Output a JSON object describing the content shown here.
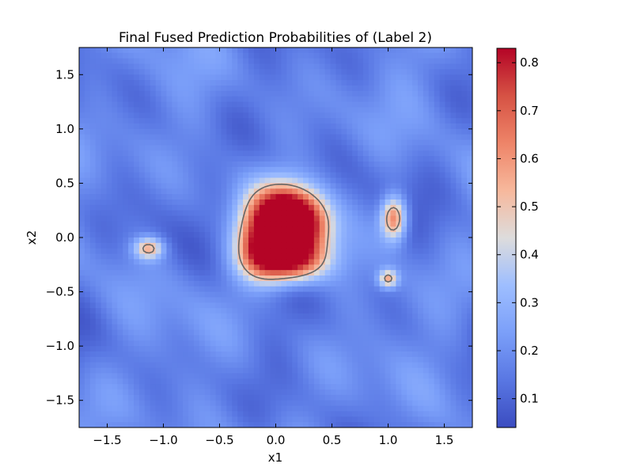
{
  "chart_data": {
    "type": "heatmap",
    "title": "Final Fused Prediction Probabilities of (Label 2)",
    "xlabel": "x1",
    "ylabel": "x2",
    "xlim": [
      -1.75,
      1.75
    ],
    "ylim": [
      -1.75,
      1.75
    ],
    "x_ticks": [
      -1.5,
      -1.0,
      -0.5,
      0.0,
      0.5,
      1.0,
      1.5
    ],
    "x_tick_labels": [
      "−1.5",
      "−1.0",
      "−0.5",
      "0.0",
      "0.5",
      "1.0",
      "1.5"
    ],
    "y_ticks": [
      1.5,
      1.0,
      0.5,
      0.0,
      -0.5,
      -1.0,
      -1.5
    ],
    "y_tick_labels": [
      "1.5",
      "1.0",
      "0.5",
      "0.0",
      "−0.5",
      "−1.0",
      "−1.5"
    ],
    "colormap": "coolwarm",
    "colorbar": {
      "range": [
        0.04,
        0.83
      ],
      "ticks": [
        0.1,
        0.2,
        0.3,
        0.4,
        0.5,
        0.6,
        0.7,
        0.8
      ],
      "tick_labels": [
        "0.1",
        "0.2",
        "0.3",
        "0.4",
        "0.5",
        "0.6",
        "0.7",
        "0.8"
      ]
    },
    "contour_level": 0.5,
    "background_level": 0.17,
    "high_regions": [
      {
        "center": [
          0.05,
          0.25
        ],
        "sigma": [
          0.2,
          0.18
        ],
        "peak": 0.56
      },
      {
        "center": [
          0.25,
          0.1
        ],
        "sigma": [
          0.18,
          0.2
        ],
        "peak": 0.56
      },
      {
        "center": [
          0.1,
          -0.22
        ],
        "sigma": [
          0.22,
          0.14
        ],
        "peak": 0.65
      },
      {
        "center": [
          -0.15,
          -0.05
        ],
        "sigma": [
          0.15,
          0.2
        ],
        "peak": 0.5
      },
      {
        "center": [
          1.05,
          0.18
        ],
        "sigma": [
          0.08,
          0.14
        ],
        "peak": 0.52
      },
      {
        "center": [
          1.0,
          -0.38
        ],
        "sigma": [
          0.06,
          0.06
        ],
        "peak": 0.38
      },
      {
        "center": [
          -1.13,
          -0.1
        ],
        "sigma": [
          0.09,
          0.07
        ],
        "peak": 0.38
      }
    ]
  }
}
